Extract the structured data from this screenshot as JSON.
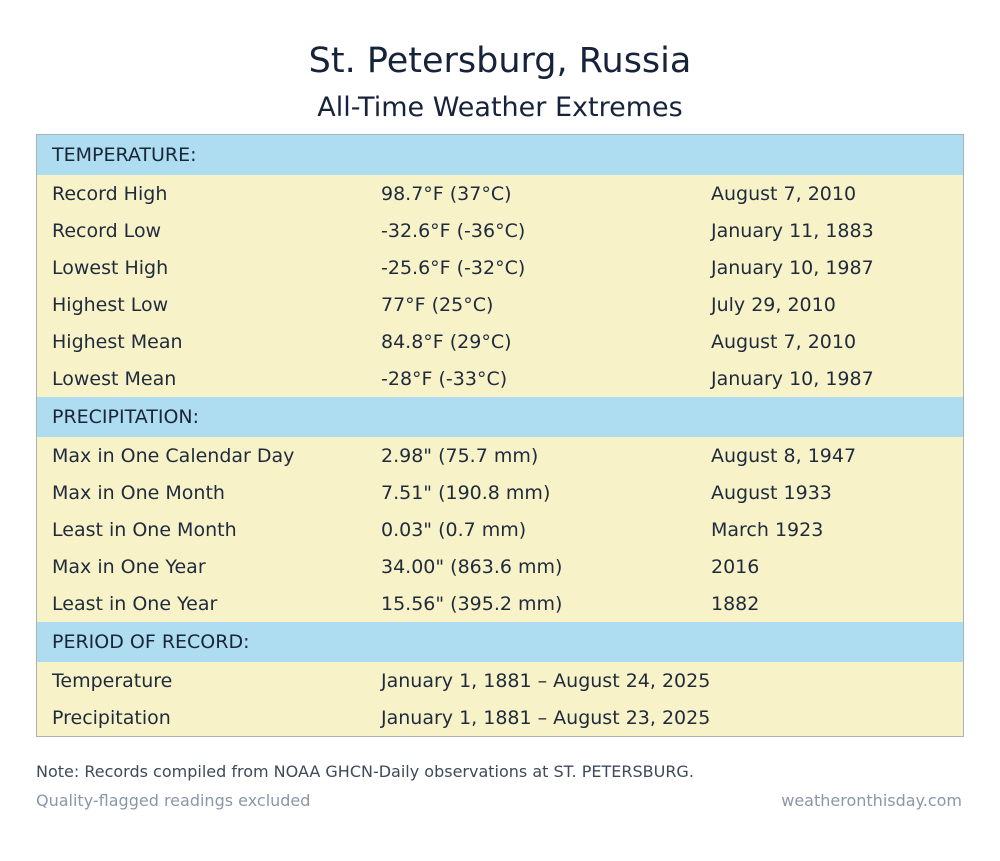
{
  "header": {
    "title": "St. Petersburg, Russia",
    "subtitle": "All-Time Weather Extremes"
  },
  "colors": {
    "section_header_bg": "#aedcf0",
    "row_bg": "#f7f2c8",
    "border": "#a9b1ba",
    "title_text": "#16233a",
    "muted_text": "#8a97a8"
  },
  "sections": [
    {
      "label": "TEMPERATURE:",
      "rows": [
        {
          "name": "Record High",
          "value": "98.7°F (37°C)",
          "date": "August 7, 2010"
        },
        {
          "name": "Record Low",
          "value": "-32.6°F (-36°C)",
          "date": "January 11, 1883"
        },
        {
          "name": "Lowest High",
          "value": "-25.6°F (-32°C)",
          "date": "January 10, 1987"
        },
        {
          "name": "Highest Low",
          "value": "77°F (25°C)",
          "date": "July 29, 2010"
        },
        {
          "name": "Highest Mean",
          "value": "84.8°F (29°C)",
          "date": "August 7, 2010"
        },
        {
          "name": "Lowest Mean",
          "value": "-28°F (-33°C)",
          "date": "January 10, 1987"
        }
      ]
    },
    {
      "label": "PRECIPITATION:",
      "rows": [
        {
          "name": "Max in One Calendar Day",
          "value": "2.98\" (75.7 mm)",
          "date": "August 8, 1947"
        },
        {
          "name": "Max in One Month",
          "value": "7.51\" (190.8 mm)",
          "date": "August 1933"
        },
        {
          "name": "Least in One Month",
          "value": "0.03\" (0.7 mm)",
          "date": "March 1923"
        },
        {
          "name": "Max in One Year",
          "value": "34.00\" (863.6 mm)",
          "date": "2016"
        },
        {
          "name": "Least in One Year",
          "value": "15.56\" (395.2 mm)",
          "date": "1882"
        }
      ]
    },
    {
      "label": "PERIOD OF RECORD:",
      "rows": [
        {
          "name": "Temperature",
          "value": "January 1, 1881 – August 24, 2025",
          "date": ""
        },
        {
          "name": "Precipitation",
          "value": "January 1, 1881 – August 23, 2025",
          "date": ""
        }
      ]
    }
  ],
  "footer": {
    "note": "Note: Records compiled from NOAA GHCN-Daily observations at ST. PETERSBURG.",
    "quality": "Quality-flagged readings excluded",
    "source": "weatheronthisday.com"
  }
}
